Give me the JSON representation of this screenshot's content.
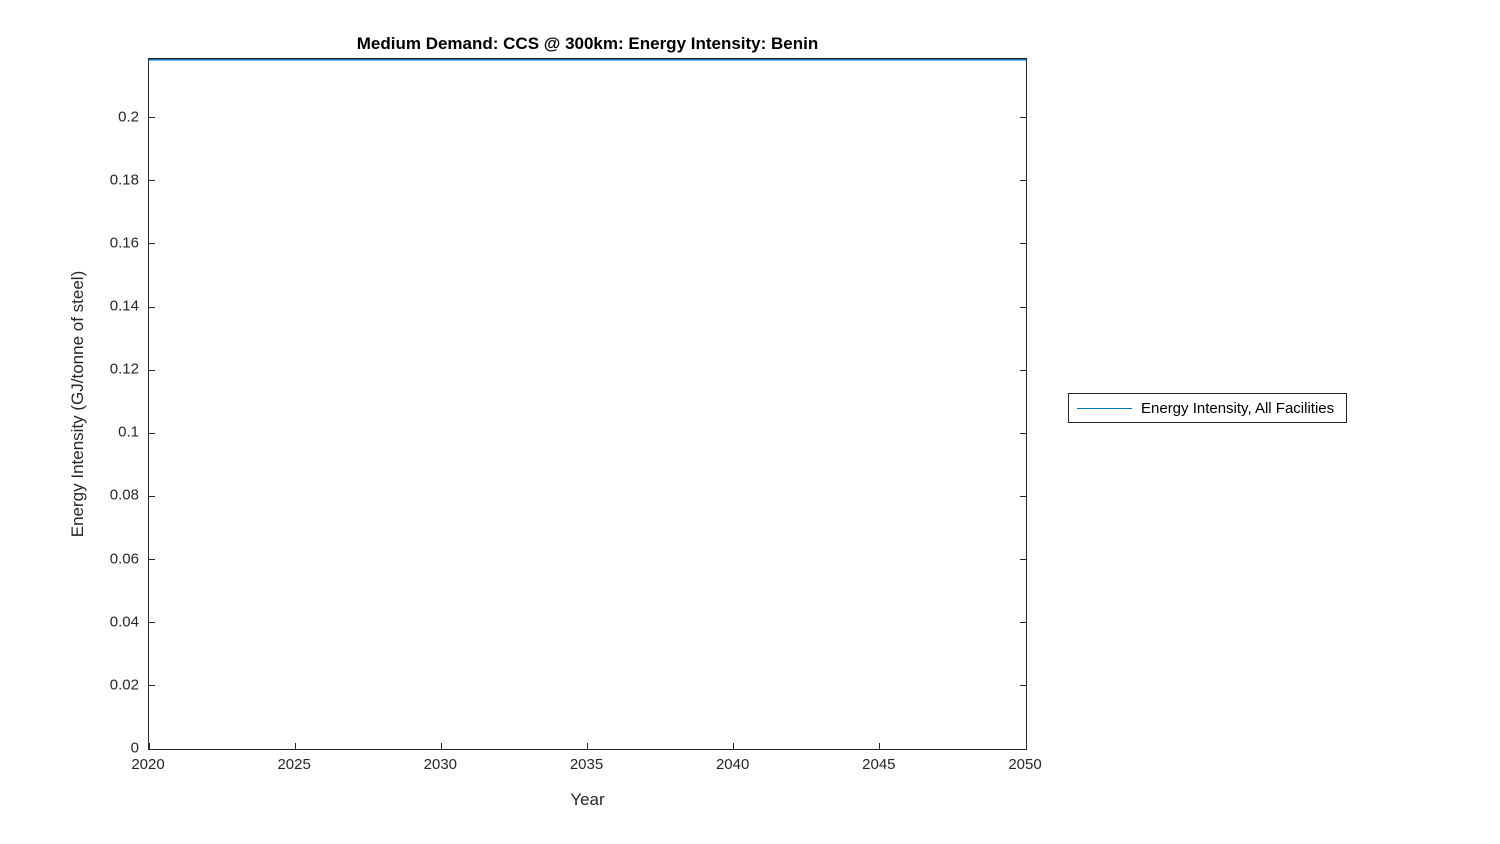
{
  "title": "Medium Demand: CCS @ 300km: Energy Intensity: Benin",
  "chart_data": {
    "type": "line",
    "title": "Medium Demand: CCS @ 300km: Energy Intensity: Benin",
    "xlabel": "Year",
    "ylabel": "Energy Intensity (GJ/tonne of steel)",
    "xlim": [
      2020,
      2050
    ],
    "ylim": [
      0,
      0.2186
    ],
    "xticks": [
      2020,
      2025,
      2030,
      2035,
      2040,
      2045,
      2050
    ],
    "yticks": [
      0,
      0.02,
      0.04,
      0.06,
      0.08,
      0.1,
      0.12,
      0.14,
      0.16,
      0.18,
      0.2
    ],
    "grid": false,
    "legend_position": "right-outside",
    "series": [
      {
        "name": "Energy Intensity, All Facilities",
        "color": "#0072BD",
        "x": [
          2020,
          2050
        ],
        "y": [
          0.2186,
          0.2186
        ]
      }
    ]
  },
  "legend": {
    "entries": [
      {
        "label": "Energy Intensity, All Facilities",
        "color": "#0072BD"
      }
    ]
  }
}
